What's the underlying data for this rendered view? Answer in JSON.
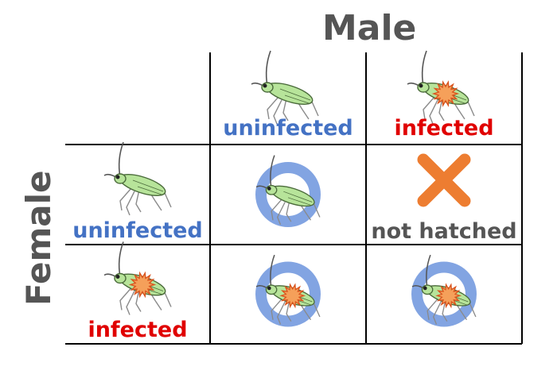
{
  "axes": {
    "column_title": "Male",
    "row_title": "Female"
  },
  "columns": [
    {
      "label": "uninfected",
      "infected": false
    },
    {
      "label": "infected",
      "infected": true
    }
  ],
  "rows": [
    {
      "label": "uninfected",
      "infected": false
    },
    {
      "label": "infected",
      "infected": true
    }
  ],
  "outcomes": [
    [
      {
        "result": "circle",
        "bug_infected": false,
        "label": ""
      },
      {
        "result": "cross",
        "bug_infected": false,
        "label": "not hatched"
      }
    ],
    [
      {
        "result": "circle",
        "bug_infected": true,
        "label": ""
      },
      {
        "result": "circle",
        "bug_infected": true,
        "label": ""
      }
    ]
  ],
  "colors": {
    "uninfected_text": "#4472c4",
    "infected_text": "#e00000",
    "title_text": "#555555",
    "not_hatched_text": "#555555",
    "circle": "#7b9fe0",
    "cross": "#ed7d31",
    "grid": "#000000",
    "bug_body": "#b7e49a",
    "bug_outline": "#4a6a3a",
    "infection_burst": "#f5a05a",
    "infection_burst_edge": "#d9541e"
  }
}
